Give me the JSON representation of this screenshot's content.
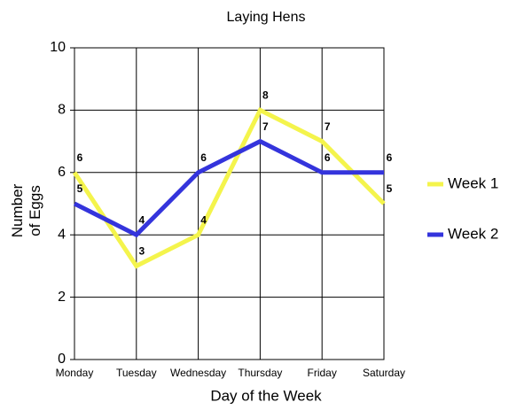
{
  "chart_data": {
    "type": "line",
    "title": "Laying Hens",
    "x_label": "Day of the Week",
    "y_label": "Number of Eggs",
    "categories": [
      "Monday",
      "Tuesday",
      "Wednesday",
      "Thursday",
      "Friday",
      "Saturday"
    ],
    "series": [
      {
        "name": "Week 1",
        "color": "#f4f44c",
        "values": [
          6,
          3,
          4,
          8,
          7,
          5
        ]
      },
      {
        "name": "Week 2",
        "color": "#3434dc",
        "values": [
          5,
          4,
          6,
          7,
          6,
          6
        ]
      }
    ],
    "ylim": [
      0,
      10
    ],
    "yticks": [
      0,
      2,
      4,
      6,
      8,
      10
    ],
    "grid": true,
    "legend": "right"
  }
}
